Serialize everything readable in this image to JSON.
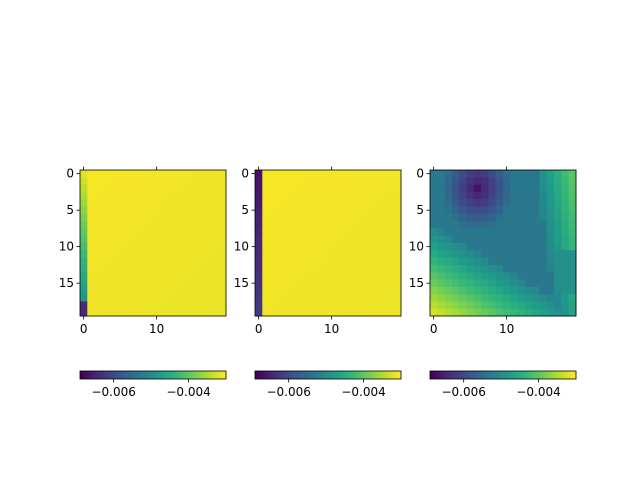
{
  "chart_data": [
    {
      "type": "heatmap",
      "rows": 20,
      "cols": 20,
      "pattern": "left-column-gradient-light",
      "x_ticks": [
        0,
        10
      ],
      "y_ticks": [
        0,
        5,
        10,
        15
      ],
      "x_tick_labels": [
        "0",
        "10"
      ],
      "y_tick_labels": [
        "0",
        "5",
        "10",
        "15"
      ],
      "colorbar": {
        "orientation": "horizontal",
        "range": [
          -0.0069,
          -0.003
        ],
        "ticks": [
          -0.006,
          -0.004
        ],
        "tick_labels": [
          "−0.006",
          "−0.004"
        ],
        "colormap": "viridis"
      }
    },
    {
      "type": "heatmap",
      "rows": 20,
      "cols": 20,
      "pattern": "left-column-dark",
      "x_ticks": [
        0,
        10
      ],
      "y_ticks": [
        0,
        5,
        10,
        15
      ],
      "x_tick_labels": [
        "0",
        "10"
      ],
      "y_tick_labels": [
        "0",
        "5",
        "10",
        "15"
      ],
      "colorbar": {
        "orientation": "horizontal",
        "range": [
          -0.0069,
          -0.003
        ],
        "ticks": [
          -0.006,
          -0.004
        ],
        "tick_labels": [
          "−0.006",
          "−0.004"
        ],
        "colormap": "viridis"
      }
    },
    {
      "type": "heatmap",
      "rows": 20,
      "cols": 20,
      "pattern": "diagonal-yellow-bottom-left-dark-top-center",
      "x_ticks": [
        0,
        10
      ],
      "y_ticks": [
        0,
        5,
        10,
        15
      ],
      "x_tick_labels": [
        "0",
        "10"
      ],
      "y_tick_labels": [
        "0",
        "5",
        "10",
        "15"
      ],
      "colorbar": {
        "orientation": "horizontal",
        "range": [
          -0.0069,
          -0.003
        ],
        "ticks": [
          -0.006,
          -0.004
        ],
        "tick_labels": [
          "−0.006",
          "−0.004"
        ],
        "colormap": "viridis"
      }
    }
  ]
}
